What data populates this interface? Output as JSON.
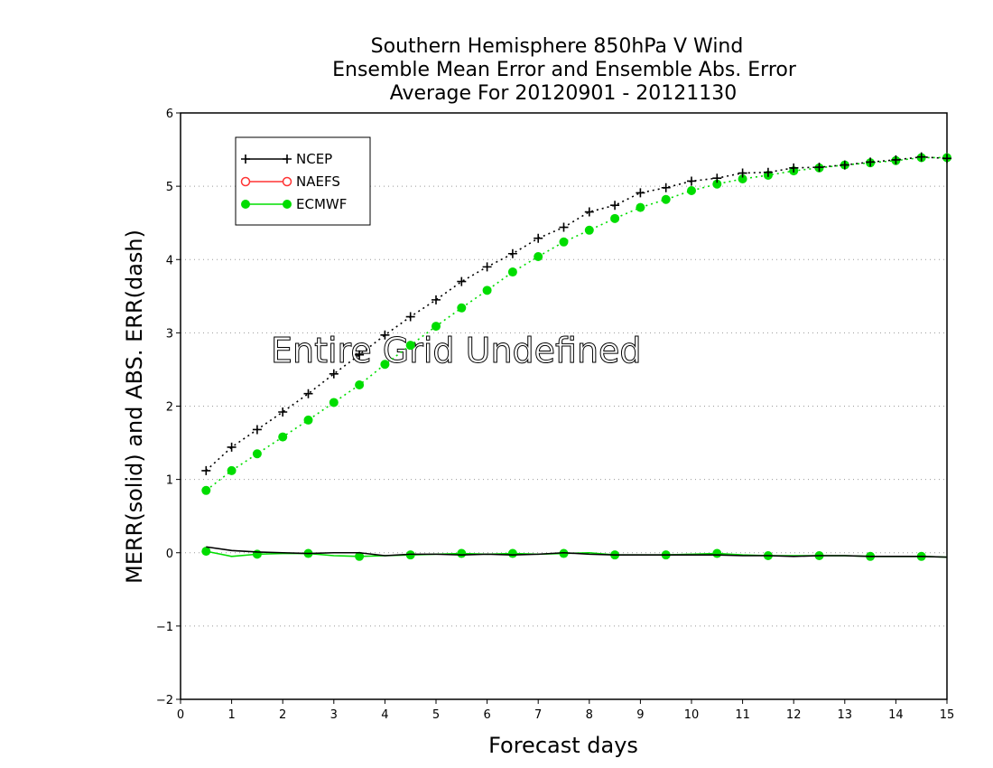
{
  "chart_data": {
    "type": "line",
    "title_lines": [
      "Southern Hemisphere 850hPa V Wind",
      "Ensemble Mean Error and Ensemble Abs. Error",
      "Average For 20120901 - 20121130"
    ],
    "xlabel": "Forecast days",
    "ylabel": "MERR(solid) and ABS. ERR(dash)",
    "xlim": [
      0,
      15
    ],
    "ylim": [
      -2,
      6
    ],
    "xticks": [
      "0",
      "1",
      "2",
      "3",
      "4",
      "5",
      "6",
      "7",
      "8",
      "9",
      "10",
      "11",
      "12",
      "13",
      "14",
      "15"
    ],
    "yticks": [
      "-2",
      "-1",
      "0",
      "1",
      "2",
      "3",
      "4",
      "5",
      "6"
    ],
    "grid": "horizontal dotted",
    "legend_position": "top-left",
    "annotation": "Entire Grid Undefined",
    "x": [
      0.5,
      1,
      1.5,
      2,
      2.5,
      3,
      3.5,
      4,
      4.5,
      5,
      5.5,
      6,
      6.5,
      7,
      7.5,
      8,
      8.5,
      9,
      9.5,
      10,
      10.5,
      11,
      11.5,
      12,
      12.5,
      13,
      13.5,
      14,
      14.5,
      15
    ],
    "series": [
      {
        "name": "NCEP",
        "color": "#000000",
        "marker": "plus",
        "merr": [
          0.08,
          0.03,
          0.01,
          0.0,
          -0.01,
          0.0,
          0.0,
          -0.04,
          -0.02,
          -0.02,
          -0.03,
          -0.02,
          -0.03,
          -0.02,
          0.0,
          -0.02,
          -0.03,
          -0.03,
          -0.03,
          -0.03,
          -0.03,
          -0.04,
          -0.04,
          -0.05,
          -0.04,
          -0.04,
          -0.05,
          -0.05,
          -0.05,
          -0.06
        ],
        "abserr": [
          1.12,
          1.44,
          1.68,
          1.92,
          2.17,
          2.44,
          2.7,
          2.97,
          3.22,
          3.45,
          3.7,
          3.9,
          4.08,
          4.29,
          4.44,
          4.65,
          4.74,
          4.91,
          4.98,
          5.07,
          5.11,
          5.18,
          5.19,
          5.25,
          5.26,
          5.29,
          5.33,
          5.36,
          5.4,
          5.38
        ]
      },
      {
        "name": "NAEFS",
        "color": "#ff3333",
        "marker": "open-circle",
        "merr": [],
        "abserr": []
      },
      {
        "name": "ECMWF",
        "color": "#00dd00",
        "marker": "filled-circle",
        "merr": [
          0.02,
          -0.05,
          -0.02,
          -0.01,
          -0.01,
          -0.04,
          -0.05,
          -0.04,
          -0.03,
          -0.02,
          -0.01,
          -0.02,
          -0.01,
          -0.02,
          -0.01,
          0.0,
          -0.03,
          -0.03,
          -0.03,
          -0.02,
          -0.01,
          -0.03,
          -0.04,
          -0.04,
          -0.04,
          -0.04,
          -0.05,
          -0.05,
          -0.05,
          -0.06
        ],
        "abserr": [
          0.85,
          1.12,
          1.35,
          1.58,
          1.81,
          2.05,
          2.29,
          2.57,
          2.83,
          3.09,
          3.34,
          3.58,
          3.83,
          4.04,
          4.24,
          4.4,
          4.56,
          4.71,
          4.82,
          4.94,
          5.03,
          5.1,
          5.15,
          5.21,
          5.25,
          5.29,
          5.32,
          5.35,
          5.39,
          5.39
        ]
      }
    ]
  }
}
